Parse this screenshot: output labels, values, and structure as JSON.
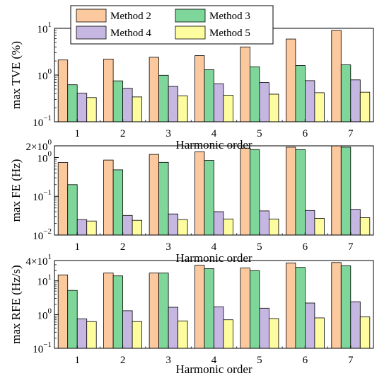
{
  "legend": [
    {
      "label": "Method 2",
      "color": "#FCC89E"
    },
    {
      "label": "Method 3",
      "color": "#7FD69A"
    },
    {
      "label": "Method 4",
      "color": "#C6B6E2"
    },
    {
      "label": "Method 5",
      "color": "#FDFDA0"
    }
  ],
  "chart_data": [
    {
      "type": "bar",
      "title": "",
      "xlabel": "Harmonic order",
      "ylabel": "max TVE (%)",
      "yscale": "log",
      "ylim": [
        0.1,
        10
      ],
      "yticks": [
        {
          "base": "10",
          "exp": "−1",
          "value": 0.1
        },
        {
          "base": "10",
          "exp": "0",
          "value": 1
        },
        {
          "base": "10",
          "exp": "1",
          "value": 10
        }
      ],
      "categories": [
        "1",
        "2",
        "3",
        "4",
        "5",
        "6",
        "7"
      ],
      "series": [
        {
          "name": "Method 2",
          "values": [
            2.1,
            2.2,
            2.4,
            2.6,
            4.0,
            5.9,
            9.0
          ]
        },
        {
          "name": "Method 3",
          "values": [
            0.62,
            0.75,
            0.99,
            1.3,
            1.5,
            1.6,
            1.65
          ]
        },
        {
          "name": "Method 4",
          "values": [
            0.41,
            0.52,
            0.57,
            0.65,
            0.69,
            0.76,
            0.79
          ]
        },
        {
          "name": "Method 5",
          "values": [
            0.33,
            0.34,
            0.36,
            0.37,
            0.39,
            0.42,
            0.43
          ]
        }
      ]
    },
    {
      "type": "bar",
      "title": "",
      "xlabel": "Harmonic order",
      "ylabel": "max FE (Hz)",
      "yscale": "log",
      "ylim": [
        0.01,
        2
      ],
      "yticks": [
        {
          "base": "10",
          "exp": "−2",
          "value": 0.01
        },
        {
          "base": "10",
          "exp": "−1",
          "value": 0.1
        },
        {
          "base": "10",
          "exp": "0",
          "value": 1
        },
        {
          "base": "2×10",
          "exp": "0",
          "value": 2
        }
      ],
      "categories": [
        "1",
        "2",
        "3",
        "4",
        "5",
        "6",
        "7"
      ],
      "series": [
        {
          "name": "Method 2",
          "values": [
            0.74,
            0.86,
            1.2,
            1.4,
            1.75,
            1.85,
            2.0
          ]
        },
        {
          "name": "Method 3",
          "values": [
            0.2,
            0.48,
            0.75,
            0.84,
            1.6,
            1.6,
            1.85
          ]
        },
        {
          "name": "Method 4",
          "values": [
            0.025,
            0.032,
            0.035,
            0.04,
            0.042,
            0.043,
            0.046
          ]
        },
        {
          "name": "Method 5",
          "values": [
            0.023,
            0.024,
            0.025,
            0.026,
            0.026,
            0.027,
            0.028
          ]
        }
      ]
    },
    {
      "type": "bar",
      "title": "",
      "xlabel": "Harmonic order",
      "ylabel": "max RFE (Hz/s)",
      "yscale": "log",
      "ylim": [
        0.1,
        40
      ],
      "yticks": [
        {
          "base": "10",
          "exp": "−1",
          "value": 0.1
        },
        {
          "base": "10",
          "exp": "0",
          "value": 1
        },
        {
          "base": "10",
          "exp": "1",
          "value": 10
        },
        {
          "base": "4×10",
          "exp": "1",
          "value": 40
        }
      ],
      "categories": [
        "1",
        "2",
        "3",
        "4",
        "5",
        "6",
        "7"
      ],
      "series": [
        {
          "name": "Method 2",
          "values": [
            15,
            17,
            17,
            29,
            24,
            34,
            35
          ]
        },
        {
          "name": "Method 3",
          "values": [
            5.2,
            14,
            17,
            23,
            20,
            25,
            28
          ]
        },
        {
          "name": "Method 4",
          "values": [
            0.75,
            1.3,
            1.65,
            1.7,
            1.55,
            2.2,
            2.4
          ]
        },
        {
          "name": "Method 5",
          "values": [
            0.62,
            0.62,
            0.65,
            0.7,
            0.76,
            0.8,
            0.85
          ]
        }
      ]
    }
  ]
}
